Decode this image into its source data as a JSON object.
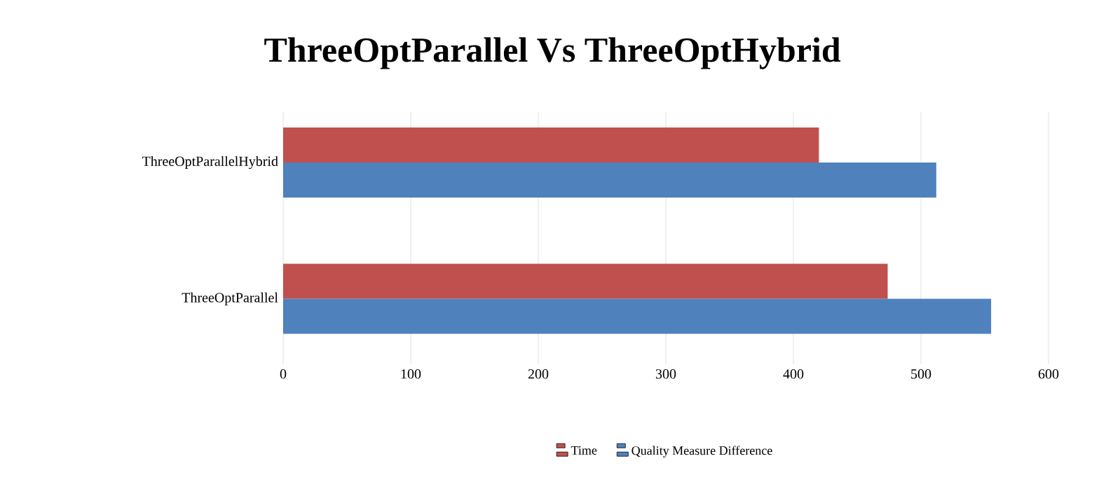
{
  "chart_data": {
    "type": "bar",
    "orientation": "horizontal",
    "title": "ThreeOptParallel Vs ThreeOptHybrid",
    "categories": [
      "ThreeOptParallelHybrid",
      "ThreeOptParallel"
    ],
    "series": [
      {
        "name": "Time",
        "color": "#c0504d",
        "values": [
          420,
          474
        ]
      },
      {
        "name": "Quality Measure Difference",
        "color": "#4f81bd",
        "values": [
          512,
          555
        ]
      }
    ],
    "xlim": [
      0,
      600
    ],
    "xticks": [
      0,
      100,
      200,
      300,
      400,
      500,
      600
    ],
    "grid": "x",
    "legend": "bottom"
  }
}
